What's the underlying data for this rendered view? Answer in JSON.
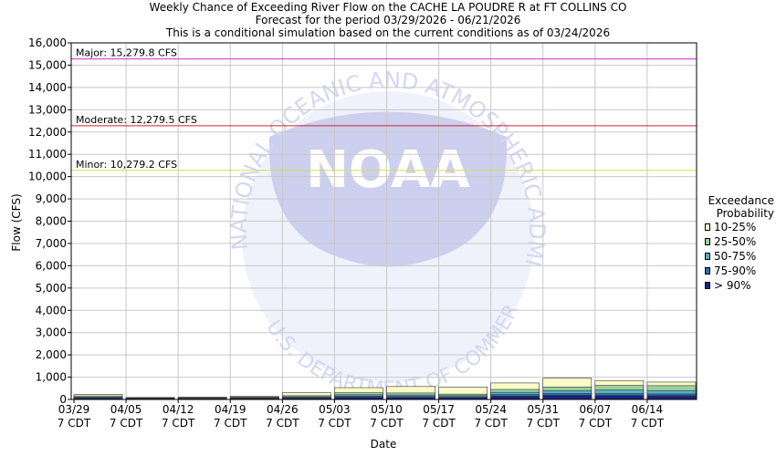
{
  "chart_data": {
    "type": "bar",
    "title_lines": [
      "Weekly Chance of Exceeding River Flow on the CACHE LA POUDRE R at FT COLLINS CO",
      "Forecast for the period 03/29/2026 - 06/21/2026",
      "This is a conditional simulation based on the current conditions as of 03/24/2026"
    ],
    "xlabel": "Date",
    "ylabel": "Flow (CFS)",
    "ylim": [
      0,
      16000
    ],
    "yticks": [
      0,
      1000,
      2000,
      3000,
      4000,
      5000,
      6000,
      7000,
      8000,
      9000,
      10000,
      11000,
      12000,
      13000,
      14000,
      15000,
      16000
    ],
    "ytick_labels": [
      "0",
      "1,000",
      "2,000",
      "3,000",
      "4,000",
      "5,000",
      "6,000",
      "7,000",
      "8,000",
      "9,000",
      "10,000",
      "11,000",
      "12,000",
      "13,000",
      "14,000",
      "15,000",
      "16,000"
    ],
    "grid": true,
    "categories": [
      "03/29",
      "04/05",
      "04/12",
      "04/19",
      "04/26",
      "05/03",
      "05/10",
      "05/17",
      "05/24",
      "05/31",
      "06/07",
      "06/14"
    ],
    "category_sublabel": "7 CDT",
    "series": [
      {
        "name": "> 90%",
        "color": "#1a237e",
        "values": [
          60,
          25,
          30,
          40,
          60,
          100,
          90,
          80,
          150,
          190,
          180,
          170
        ]
      },
      {
        "name": "75-90%",
        "color": "#2f6fb0",
        "values": [
          80,
          35,
          45,
          55,
          90,
          150,
          140,
          120,
          220,
          270,
          260,
          250
        ]
      },
      {
        "name": "50-75%",
        "color": "#4fb3c8",
        "values": [
          110,
          50,
          60,
          75,
          120,
          210,
          200,
          170,
          320,
          400,
          420,
          400
        ]
      },
      {
        "name": "25-50%",
        "color": "#9ccf9c",
        "values": [
          160,
          70,
          80,
          110,
          170,
          300,
          290,
          240,
          450,
          560,
          630,
          620
        ]
      },
      {
        "name": "10-25%",
        "color": "#fbfbc8",
        "values": [
          220,
          90,
          110,
          140,
          300,
          530,
          580,
          560,
          740,
          960,
          850,
          780
        ]
      }
    ],
    "thresholds": [
      {
        "label": "Major: 15,279.8 CFS",
        "value": 15279.8,
        "color": "#cc33cc"
      },
      {
        "label": "Moderate: 12,279.5 CFS",
        "value": 12279.5,
        "color": "#cc2233"
      },
      {
        "label": "Minor: 10,279.2 CFS",
        "value": 10279.2,
        "color": "#dede44"
      }
    ],
    "legend": {
      "title_lines": [
        "Exceedance",
        "Probability"
      ],
      "placement": "right",
      "entries": [
        {
          "label": "10-25%",
          "color": "#fbfbc8"
        },
        {
          "label": "25-50%",
          "color": "#9ccf9c"
        },
        {
          "label": "50-75%",
          "color": "#4fb3c8"
        },
        {
          "label": "75-90%",
          "color": "#2f6fb0"
        },
        {
          "label": "> 90%",
          "color": "#1a237e"
        }
      ]
    }
  },
  "watermark": {
    "logo_text": "NOAA",
    "ring_text": "NATIONAL OCEANIC AND ATMOSPHERIC ADMINISTRATION",
    "bottom_text": "U.S. DEPARTMENT OF COMMERCE"
  }
}
